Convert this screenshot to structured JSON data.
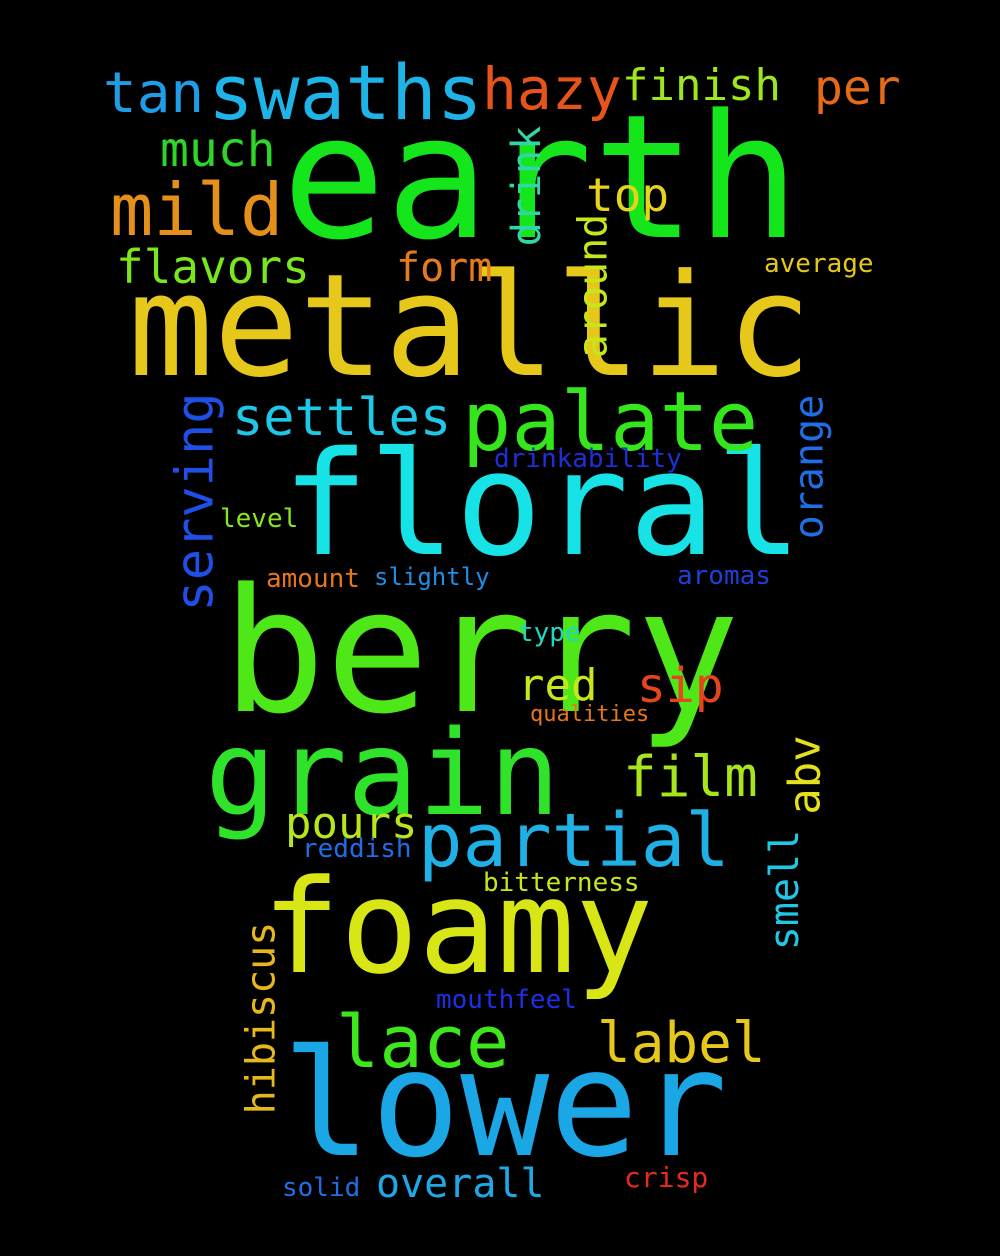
{
  "words": {
    "earth": {
      "text": "earth",
      "color": "#15e61b"
    },
    "metallic": {
      "text": "metallic",
      "color": "#e6c81a"
    },
    "floral": {
      "text": "floral",
      "color": "#17e3e6"
    },
    "berry": {
      "text": "berry",
      "color": "#4ee818"
    },
    "grain": {
      "text": "grain",
      "color": "#2ee32a"
    },
    "foamy": {
      "text": "foamy",
      "color": "#d8e615"
    },
    "lower": {
      "text": "lower",
      "color": "#1ba6e6"
    },
    "swaths": {
      "text": "swaths",
      "color": "#1fb4e8"
    },
    "tan": {
      "text": "tan",
      "color": "#1f9de6"
    },
    "hazy": {
      "text": "hazy",
      "color": "#e6541c"
    },
    "finish": {
      "text": "finish",
      "color": "#9fe61c"
    },
    "per": {
      "text": "per",
      "color": "#e66a17"
    },
    "much": {
      "text": "much",
      "color": "#2ed62a"
    },
    "mild": {
      "text": "mild",
      "color": "#e6901c"
    },
    "drink": {
      "text": "drink",
      "color": "#2ed6a8"
    },
    "top": {
      "text": "top",
      "color": "#e6d41c"
    },
    "around": {
      "text": "around",
      "color": "#c6e61c"
    },
    "flavors": {
      "text": "flavors",
      "color": "#7ae61c"
    },
    "form": {
      "text": "form",
      "color": "#e67c17"
    },
    "average": {
      "text": "average",
      "color": "#e6c81a"
    },
    "palate": {
      "text": "palate",
      "color": "#36e61c"
    },
    "settles": {
      "text": "settles",
      "color": "#1fc8e6"
    },
    "serving": {
      "text": "serving",
      "color": "#1f4fe6"
    },
    "orange": {
      "text": "orange",
      "color": "#1f6ee6"
    },
    "drinkability": {
      "text": "drinkability",
      "color": "#1f2fd8"
    },
    "level": {
      "text": "level",
      "color": "#8ae61c"
    },
    "amount": {
      "text": "amount",
      "color": "#e6761a"
    },
    "slightly": {
      "text": "slightly",
      "color": "#1f8ee6"
    },
    "aromas": {
      "text": "aromas",
      "color": "#1f3fd8"
    },
    "type": {
      "text": "type",
      "color": "#1fd6c0"
    },
    "red": {
      "text": "red",
      "color": "#c8e61c"
    },
    "sip": {
      "text": "sip",
      "color": "#e6451c"
    },
    "qualities": {
      "text": "qualities",
      "color": "#e6761a"
    },
    "film": {
      "text": "film",
      "color": "#a8e61c"
    },
    "abv": {
      "text": "abv",
      "color": "#e6e01c"
    },
    "pours": {
      "text": "pours",
      "color": "#b8e61c"
    },
    "partial": {
      "text": "partial",
      "color": "#1fb0e6"
    },
    "reddish": {
      "text": "reddish",
      "color": "#1f6ee6"
    },
    "smell": {
      "text": "smell",
      "color": "#1fc8e6"
    },
    "bitterness": {
      "text": "bitterness",
      "color": "#c8e61c"
    },
    "hibiscus": {
      "text": "hibiscus",
      "color": "#e6b81c"
    },
    "mouthfeel": {
      "text": "mouthfeel",
      "color": "#1f2fe6"
    },
    "lace": {
      "text": "lace",
      "color": "#3ee61c"
    },
    "label": {
      "text": "label",
      "color": "#e6c81c"
    },
    "solid": {
      "text": "solid",
      "color": "#1f6ee6"
    },
    "overall": {
      "text": "overall",
      "color": "#1fa8e6"
    },
    "crisp": {
      "text": "crisp",
      "color": "#e62a1c"
    }
  }
}
